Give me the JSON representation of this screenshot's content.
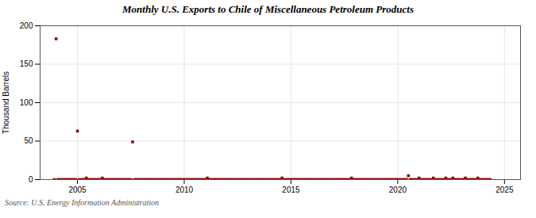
{
  "chart_data": {
    "type": "scatter",
    "title": "Monthly U.S. Exports to Chile of Miscellaneous Petroleum Products",
    "ylabel": "Thousand Barrels",
    "source": "Source: U.S. Energy Information Administration",
    "color": "#8b0000",
    "marker": "square",
    "grid": true,
    "xlim": [
      2003.25,
      2025.75
    ],
    "xticks": [
      2005,
      2010,
      2015,
      2020,
      2025
    ],
    "ylim": [
      0,
      200
    ],
    "yticks": [
      0,
      50,
      100,
      150,
      200
    ],
    "x": [
      2003.917,
      2004.0,
      2004.083,
      2004.167,
      2004.25,
      2004.333,
      2004.417,
      2004.5,
      2004.583,
      2004.667,
      2004.75,
      2004.833,
      2004.917,
      2005.0,
      2005.083,
      2005.167,
      2005.25,
      2005.333,
      2005.417,
      2005.5,
      2005.583,
      2005.667,
      2005.75,
      2005.833,
      2005.917,
      2006.0,
      2006.083,
      2006.167,
      2006.25,
      2006.333,
      2006.417,
      2006.5,
      2006.583,
      2006.667,
      2006.75,
      2006.833,
      2006.917,
      2007.0,
      2007.083,
      2007.167,
      2007.25,
      2007.333,
      2007.417,
      2007.5,
      2007.583,
      2007.667,
      2007.75,
      2007.833,
      2007.917,
      2008.0,
      2008.083,
      2008.167,
      2008.25,
      2008.333,
      2008.417,
      2008.5,
      2008.583,
      2008.667,
      2008.75,
      2008.833,
      2008.917,
      2009.0,
      2009.083,
      2009.167,
      2009.25,
      2009.333,
      2009.417,
      2009.5,
      2009.583,
      2009.667,
      2009.75,
      2009.833,
      2009.917,
      2010.0,
      2010.083,
      2010.167,
      2010.25,
      2010.333,
      2010.417,
      2010.5,
      2010.583,
      2010.667,
      2010.75,
      2010.833,
      2010.917,
      2011.0,
      2011.083,
      2011.167,
      2011.25,
      2011.333,
      2011.417,
      2011.5,
      2011.583,
      2011.667,
      2011.75,
      2011.833,
      2011.917,
      2012.0,
      2012.083,
      2012.167,
      2012.25,
      2012.333,
      2012.417,
      2012.5,
      2012.583,
      2012.667,
      2012.75,
      2012.833,
      2012.917,
      2013.0,
      2013.083,
      2013.167,
      2013.25,
      2013.333,
      2013.417,
      2013.5,
      2013.583,
      2013.667,
      2013.75,
      2013.833,
      2013.917,
      2014.0,
      2014.083,
      2014.167,
      2014.25,
      2014.333,
      2014.417,
      2014.5,
      2014.583,
      2014.667,
      2014.75,
      2014.833,
      2014.917,
      2015.0,
      2015.083,
      2015.167,
      2015.25,
      2015.333,
      2015.417,
      2015.5,
      2015.583,
      2015.667,
      2015.75,
      2015.833,
      2015.917,
      2016.0,
      2016.083,
      2016.167,
      2016.25,
      2016.333,
      2016.417,
      2016.5,
      2016.583,
      2016.667,
      2016.75,
      2016.833,
      2016.917,
      2017.0,
      2017.083,
      2017.167,
      2017.25,
      2017.333,
      2017.417,
      2017.5,
      2017.583,
      2017.667,
      2017.75,
      2017.833,
      2017.917,
      2018.0,
      2018.083,
      2018.167,
      2018.25,
      2018.333,
      2018.417,
      2018.5,
      2018.583,
      2018.667,
      2018.75,
      2018.833,
      2018.917,
      2019.0,
      2019.083,
      2019.167,
      2019.25,
      2019.333,
      2019.417,
      2019.5,
      2019.583,
      2019.667,
      2019.75,
      2019.833,
      2019.917,
      2020.0,
      2020.083,
      2020.167,
      2020.25,
      2020.333,
      2020.417,
      2020.5,
      2020.583,
      2020.667,
      2020.75,
      2020.833,
      2020.917,
      2021.0,
      2021.083,
      2021.167,
      2021.25,
      2021.333,
      2021.417,
      2021.5,
      2021.583,
      2021.667,
      2021.75,
      2021.833,
      2021.917,
      2022.0,
      2022.083,
      2022.167,
      2022.25,
      2022.333,
      2022.417,
      2022.5,
      2022.583,
      2022.667,
      2022.75,
      2022.833,
      2022.917,
      2023.0,
      2023.083,
      2023.167,
      2023.25,
      2023.333,
      2023.417,
      2023.5,
      2023.583,
      2023.667,
      2023.75,
      2023.833,
      2023.917,
      2024.0,
      2024.083,
      2024.167,
      2024.25,
      2024.333
    ],
    "values": [
      0,
      183,
      0,
      0,
      0,
      0,
      0,
      0,
      0,
      0,
      0,
      0,
      0,
      63,
      0,
      0,
      0,
      0,
      2,
      0,
      0,
      0,
      0,
      0,
      0,
      0,
      0,
      2,
      0,
      0,
      0,
      0,
      0,
      0,
      0,
      0,
      0,
      0,
      0,
      0,
      0,
      0,
      0,
      0,
      49,
      0,
      0,
      0,
      0,
      0,
      0,
      0,
      0,
      0,
      0,
      0,
      0,
      0,
      0,
      0,
      0,
      0,
      0,
      0,
      0,
      0,
      0,
      0,
      0,
      0,
      0,
      0,
      0,
      0,
      0,
      0,
      0,
      0,
      0,
      0,
      0,
      0,
      0,
      0,
      0,
      0,
      2,
      0,
      0,
      0,
      0,
      0,
      0,
      0,
      0,
      0,
      0,
      0,
      0,
      0,
      0,
      0,
      0,
      0,
      0,
      0,
      0,
      0,
      0,
      0,
      0,
      0,
      0,
      0,
      0,
      0,
      0,
      0,
      0,
      0,
      0,
      0,
      0,
      0,
      0,
      0,
      0,
      0,
      2,
      0,
      0,
      0,
      0,
      0,
      0,
      0,
      0,
      0,
      0,
      0,
      0,
      0,
      0,
      0,
      0,
      0,
      0,
      0,
      0,
      0,
      0,
      0,
      0,
      0,
      0,
      0,
      0,
      0,
      0,
      0,
      0,
      0,
      0,
      0,
      0,
      0,
      0,
      2,
      0,
      0,
      0,
      0,
      0,
      0,
      0,
      0,
      0,
      0,
      0,
      0,
      0,
      0,
      0,
      0,
      0,
      0,
      0,
      0,
      0,
      0,
      0,
      0,
      0,
      0,
      0,
      0,
      0,
      0,
      0,
      5,
      0,
      0,
      0,
      0,
      0,
      2,
      0,
      0,
      0,
      0,
      0,
      0,
      0,
      2,
      0,
      0,
      0,
      0,
      0,
      0,
      2,
      0,
      0,
      0,
      2,
      0,
      0,
      0,
      0,
      0,
      0,
      2,
      0,
      0,
      0,
      0,
      0,
      0,
      2,
      0,
      0,
      0,
      0,
      0,
      0,
      0
    ]
  }
}
